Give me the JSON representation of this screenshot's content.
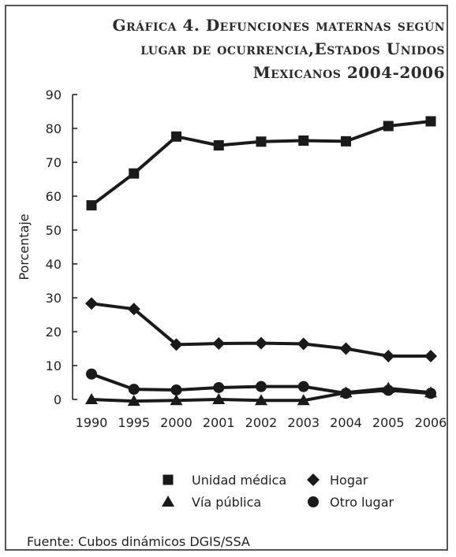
{
  "chart_data": {
    "type": "line",
    "title_lines": [
      "Gráfica 4. Defunciones maternas según",
      "lugar de ocurrencia,Estados Unidos",
      "Mexicanos 2004-2006"
    ],
    "ylabel": "Porcentaje",
    "xlabel": "",
    "categories": [
      "1990",
      "1995",
      "2000",
      "2001",
      "2002",
      "2003",
      "2004",
      "2005",
      "2006"
    ],
    "yticks": [
      "0",
      "10",
      "20",
      "30",
      "40",
      "50",
      "60",
      "70",
      "80",
      "90"
    ],
    "ylim": [
      0,
      90
    ],
    "series": [
      {
        "name": "Unidad médica",
        "marker": "square",
        "values": [
          57.3,
          66.7,
          77.6,
          75.0,
          76.1,
          76.4,
          76.2,
          80.7,
          82.1
        ]
      },
      {
        "name": "Hogar",
        "marker": "diamond",
        "values": [
          28.3,
          26.7,
          16.2,
          16.5,
          16.6,
          16.4,
          15.0,
          12.8,
          12.8
        ]
      },
      {
        "name": "Vía pública",
        "marker": "triangle",
        "values": [
          0.0,
          -0.5,
          -0.3,
          0.0,
          -0.3,
          -0.3,
          2.0,
          3.3,
          2.0
        ]
      },
      {
        "name": "Otro lugar",
        "marker": "circle",
        "values": [
          7.5,
          3.0,
          2.8,
          3.5,
          3.8,
          3.8,
          1.8,
          2.7,
          1.8
        ]
      }
    ],
    "legend_position": "bottom",
    "grid": false,
    "color": "#1a1a1a"
  },
  "source": "Fuente: Cubos dinámicos DGIS/SSA"
}
